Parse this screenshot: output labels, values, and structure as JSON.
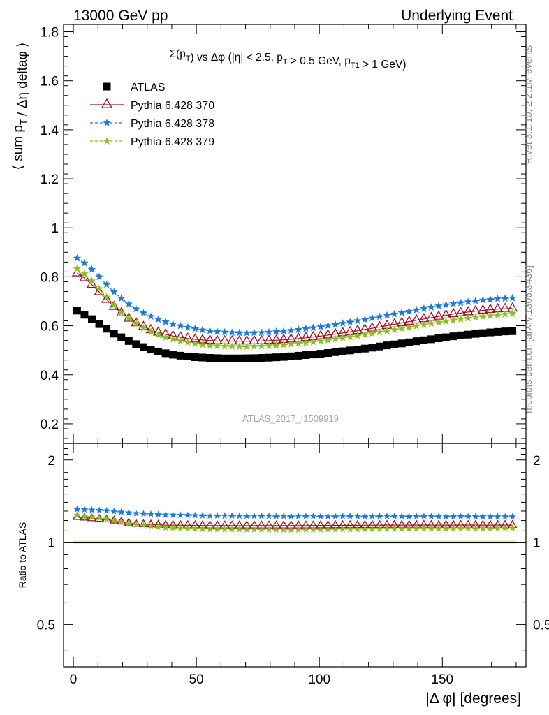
{
  "header": {
    "left": "13000 GeV pp",
    "right": "Underlying Event"
  },
  "side_labels": {
    "rivet": "Rivet 3.1.10, ≥ 2.1M events",
    "mcplots": "mcplots.cern.ch [arXiv:1306.3436]"
  },
  "chart_data": [
    {
      "type": "scatter",
      "panel": "main",
      "title": "Σ(pT) vs Δφ (|η| < 2.5, pT > 0.5 GeV, pT1 > 1 GeV)",
      "ylabel": "⟨ sum pT / Δη deltaφ ⟩",
      "watermark": "ATLAS_2017_I1509919",
      "xlim": [
        -4,
        184
      ],
      "ylim": [
        0.12,
        1.83
      ],
      "y_ticks": [
        0.2,
        0.4,
        0.6,
        0.8,
        1,
        1.2,
        1.4,
        1.6,
        1.8
      ],
      "y_tick_labels": [
        "0.2",
        "0.4",
        "0.6",
        "0.8",
        "1",
        "1.2",
        "1.4",
        "1.6",
        "1.8"
      ],
      "legend_position": "top-left",
      "x_bin_centers": "0 to 180 deg, 60 bins of 3 deg",
      "series": [
        {
          "name": "ATLAS",
          "marker": "square",
          "color": "#000000",
          "anchors": [
            [
              1.5,
              0.662
            ],
            [
              4.5,
              0.645
            ],
            [
              7.5,
              0.627
            ],
            [
              10.5,
              0.607
            ],
            [
              13.5,
              0.588
            ],
            [
              16.5,
              0.568
            ],
            [
              19.5,
              0.553
            ],
            [
              22.5,
              0.538
            ],
            [
              25.5,
              0.525
            ],
            [
              28.5,
              0.513
            ],
            [
              31.5,
              0.503
            ],
            [
              34.5,
              0.495
            ],
            [
              37.5,
              0.488
            ],
            [
              40.5,
              0.482
            ],
            [
              43.5,
              0.478
            ],
            [
              46.5,
              0.475
            ],
            [
              49.5,
              0.472
            ],
            [
              55.5,
              0.469
            ],
            [
              61.5,
              0.467
            ],
            [
              67.5,
              0.467
            ],
            [
              73.5,
              0.468
            ],
            [
              79.5,
              0.47
            ],
            [
              85.5,
              0.473
            ],
            [
              91.5,
              0.478
            ],
            [
              97.5,
              0.483
            ],
            [
              103.5,
              0.489
            ],
            [
              109.5,
              0.496
            ],
            [
              115.5,
              0.503
            ],
            [
              121.5,
              0.511
            ],
            [
              127.5,
              0.52
            ],
            [
              133.5,
              0.528
            ],
            [
              139.5,
              0.537
            ],
            [
              145.5,
              0.545
            ],
            [
              151.5,
              0.553
            ],
            [
              157.5,
              0.561
            ],
            [
              163.5,
              0.567
            ],
            [
              169.5,
              0.573
            ],
            [
              175.5,
              0.577
            ],
            [
              178.5,
              0.578
            ]
          ]
        },
        {
          "name": "Pythia 6.428 370",
          "marker": "triangle-open",
          "line": "solid",
          "color": "#a0102a",
          "anchors": [
            [
              1.5,
              0.815
            ],
            [
              4.5,
              0.795
            ],
            [
              7.5,
              0.768
            ],
            [
              10.5,
              0.738
            ],
            [
              13.5,
              0.707
            ],
            [
              16.5,
              0.678
            ],
            [
              19.5,
              0.652
            ],
            [
              22.5,
              0.63
            ],
            [
              25.5,
              0.611
            ],
            [
              28.5,
              0.596
            ],
            [
              31.5,
              0.583
            ],
            [
              34.5,
              0.573
            ],
            [
              37.5,
              0.565
            ],
            [
              40.5,
              0.558
            ],
            [
              46.5,
              0.548
            ],
            [
              52.5,
              0.542
            ],
            [
              58.5,
              0.538
            ],
            [
              64.5,
              0.537
            ],
            [
              70.5,
              0.537
            ],
            [
              76.5,
              0.538
            ],
            [
              82.5,
              0.541
            ],
            [
              88.5,
              0.545
            ],
            [
              94.5,
              0.551
            ],
            [
              100.5,
              0.558
            ],
            [
              106.5,
              0.566
            ],
            [
              112.5,
              0.575
            ],
            [
              118.5,
              0.585
            ],
            [
              124.5,
              0.595
            ],
            [
              130.5,
              0.606
            ],
            [
              136.5,
              0.617
            ],
            [
              142.5,
              0.628
            ],
            [
              148.5,
              0.638
            ],
            [
              154.5,
              0.648
            ],
            [
              160.5,
              0.656
            ],
            [
              166.5,
              0.663
            ],
            [
              172.5,
              0.668
            ],
            [
              178.5,
              0.671
            ]
          ]
        },
        {
          "name": "Pythia 6.428 378",
          "marker": "star",
          "line": "dashed",
          "color": "#1f7ad6",
          "anchors": [
            [
              1.5,
              0.876
            ],
            [
              4.5,
              0.856
            ],
            [
              7.5,
              0.83
            ],
            [
              10.5,
              0.8
            ],
            [
              13.5,
              0.768
            ],
            [
              16.5,
              0.738
            ],
            [
              19.5,
              0.712
            ],
            [
              22.5,
              0.689
            ],
            [
              25.5,
              0.669
            ],
            [
              28.5,
              0.652
            ],
            [
              31.5,
              0.638
            ],
            [
              34.5,
              0.626
            ],
            [
              37.5,
              0.616
            ],
            [
              40.5,
              0.607
            ],
            [
              46.5,
              0.593
            ],
            [
              52.5,
              0.583
            ],
            [
              58.5,
              0.576
            ],
            [
              64.5,
              0.572
            ],
            [
              70.5,
              0.571
            ],
            [
              76.5,
              0.572
            ],
            [
              82.5,
              0.576
            ],
            [
              88.5,
              0.581
            ],
            [
              94.5,
              0.588
            ],
            [
              100.5,
              0.596
            ],
            [
              106.5,
              0.605
            ],
            [
              112.5,
              0.615
            ],
            [
              118.5,
              0.626
            ],
            [
              124.5,
              0.637
            ],
            [
              130.5,
              0.648
            ],
            [
              136.5,
              0.659
            ],
            [
              142.5,
              0.67
            ],
            [
              148.5,
              0.681
            ],
            [
              154.5,
              0.69
            ],
            [
              160.5,
              0.698
            ],
            [
              166.5,
              0.705
            ],
            [
              172.5,
              0.71
            ],
            [
              178.5,
              0.713
            ]
          ]
        },
        {
          "name": "Pythia 6.428 379",
          "marker": "star",
          "line": "dashed",
          "color": "#86c21f",
          "anchors": [
            [
              1.5,
              0.833
            ],
            [
              4.5,
              0.812
            ],
            [
              7.5,
              0.783
            ],
            [
              10.5,
              0.751
            ],
            [
              13.5,
              0.717
            ],
            [
              16.5,
              0.684
            ],
            [
              19.5,
              0.655
            ],
            [
              22.5,
              0.63
            ],
            [
              25.5,
              0.609
            ],
            [
              28.5,
              0.591
            ],
            [
              31.5,
              0.576
            ],
            [
              34.5,
              0.563
            ],
            [
              37.5,
              0.553
            ],
            [
              40.5,
              0.545
            ],
            [
              46.5,
              0.532
            ],
            [
              52.5,
              0.523
            ],
            [
              58.5,
              0.518
            ],
            [
              64.5,
              0.515
            ],
            [
              70.5,
              0.515
            ],
            [
              76.5,
              0.517
            ],
            [
              82.5,
              0.52
            ],
            [
              88.5,
              0.525
            ],
            [
              94.5,
              0.531
            ],
            [
              100.5,
              0.538
            ],
            [
              106.5,
              0.546
            ],
            [
              112.5,
              0.555
            ],
            [
              118.5,
              0.564
            ],
            [
              124.5,
              0.574
            ],
            [
              130.5,
              0.584
            ],
            [
              136.5,
              0.594
            ],
            [
              142.5,
              0.604
            ],
            [
              148.5,
              0.614
            ],
            [
              154.5,
              0.623
            ],
            [
              160.5,
              0.631
            ],
            [
              166.5,
              0.638
            ],
            [
              172.5,
              0.644
            ],
            [
              178.5,
              0.65
            ]
          ]
        }
      ]
    },
    {
      "type": "scatter",
      "panel": "ratio",
      "xlabel": "|Δ φ| [degrees]",
      "ylabel": "Ratio to ATLAS",
      "xlim": [
        -4,
        184
      ],
      "ylim": [
        0.35,
        2.3
      ],
      "y_ticks": [
        0.5,
        1,
        2
      ],
      "y_tick_labels": [
        "0.5",
        "1",
        "2"
      ],
      "x_ticks": [
        0,
        50,
        100,
        150
      ],
      "x_tick_labels": [
        "0",
        "50",
        "100",
        "150"
      ],
      "reference_band": {
        "value": 1.0,
        "color": "#d4f08c"
      },
      "series": [
        {
          "name": "Pythia 6.428 370",
          "marker": "triangle-open",
          "line": "solid",
          "color": "#a0102a",
          "anchors": [
            [
              1.5,
              1.235
            ],
            [
              13.5,
              1.21
            ],
            [
              25.5,
              1.165
            ],
            [
              37.5,
              1.155
            ],
            [
              55.5,
              1.15
            ],
            [
              91.5,
              1.15
            ],
            [
              130.5,
              1.155
            ],
            [
              178.5,
              1.155
            ]
          ]
        },
        {
          "name": "Pythia 6.428 378",
          "marker": "star",
          "line": "dashed",
          "color": "#1f7ad6",
          "anchors": [
            [
              1.5,
              1.32
            ],
            [
              13.5,
              1.305
            ],
            [
              25.5,
              1.275
            ],
            [
              37.5,
              1.26
            ],
            [
              55.5,
              1.25
            ],
            [
              91.5,
              1.245
            ],
            [
              130.5,
              1.245
            ],
            [
              178.5,
              1.24
            ]
          ]
        },
        {
          "name": "Pythia 6.428 379",
          "marker": "star",
          "line": "dashed",
          "color": "#86c21f",
          "anchors": [
            [
              1.5,
              1.255
            ],
            [
              13.5,
              1.215
            ],
            [
              25.5,
              1.16
            ],
            [
              37.5,
              1.13
            ],
            [
              55.5,
              1.115
            ],
            [
              91.5,
              1.11
            ],
            [
              130.5,
              1.12
            ],
            [
              178.5,
              1.125
            ]
          ]
        }
      ]
    }
  ]
}
